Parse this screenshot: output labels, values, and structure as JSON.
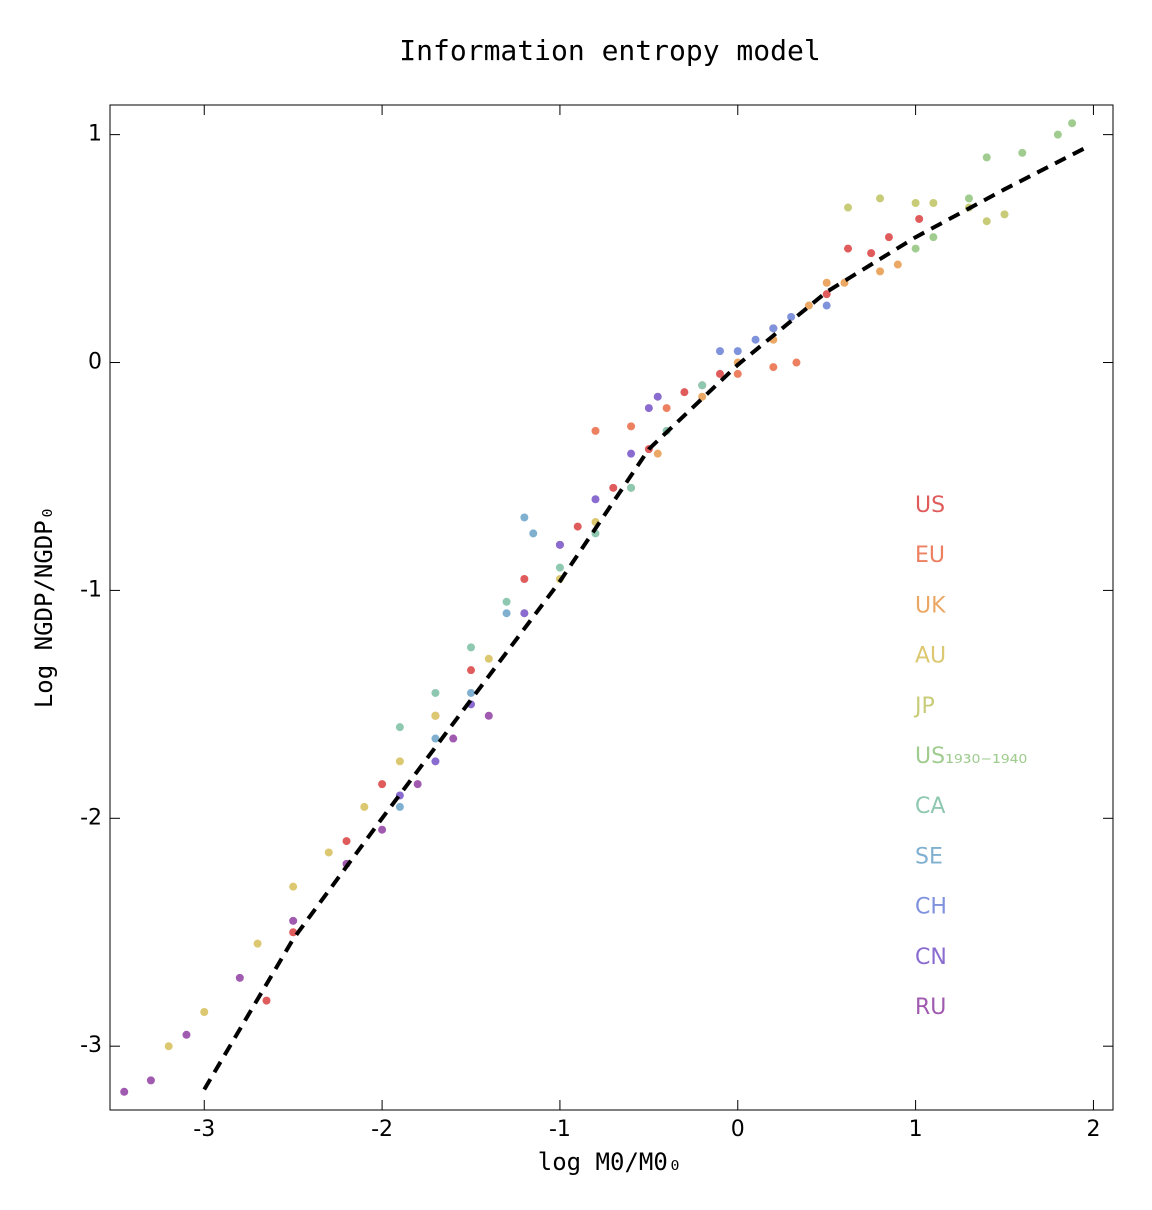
{
  "chart_data": {
    "type": "scatter",
    "title": "Information entropy model",
    "x_label": "log M0/M0₀",
    "y_label": "Log NGDP/NGDP₀",
    "xlim": [
      -3.53,
      2.11
    ],
    "ylim": [
      -3.28,
      1.13
    ],
    "xticks": [
      -3,
      -2,
      -1,
      0,
      1,
      2
    ],
    "yticks": [
      -3,
      -2,
      -1,
      0,
      1
    ],
    "model_line": {
      "color": "#000000",
      "x": [
        -3,
        -2.5,
        -2,
        -1.5,
        -1,
        -0.5,
        0,
        0.5,
        1,
        1.5,
        1.95
      ],
      "values": [
        -3.19,
        -2.53,
        -2.0,
        -1.48,
        -0.96,
        -0.38,
        -0.01,
        0.31,
        0.55,
        0.76,
        0.94
      ]
    },
    "series": [
      {
        "name": "US",
        "color": "#e05c5c",
        "x": [
          -2.65,
          -2.5,
          -2.2,
          -2,
          -1.7,
          -1.5,
          -1.2,
          -1,
          -0.9,
          -0.7,
          -0.5,
          -0.3,
          -0.1,
          0.2,
          0.5,
          0.62,
          0.75,
          0.85,
          1.02
        ],
        "values": [
          -2.8,
          -2.5,
          -2.1,
          -1.85,
          -1.55,
          -1.35,
          -0.95,
          -0.8,
          -0.72,
          -0.55,
          -0.38,
          -0.13,
          -0.05,
          0.15,
          0.3,
          0.5,
          0.48,
          0.55,
          0.63
        ]
      },
      {
        "name": "EU",
        "color": "#ec8060",
        "x": [
          -0.8,
          -0.6,
          -0.4,
          -0.2,
          0,
          0.2,
          0.33
        ],
        "values": [
          -0.3,
          -0.28,
          -0.2,
          -0.1,
          -0.05,
          -0.02,
          0
        ]
      },
      {
        "name": "UK",
        "color": "#eba865",
        "x": [
          -0.45,
          -0.2,
          0,
          0.2,
          0.4,
          0.5,
          0.6,
          0.8,
          0.9
        ],
        "values": [
          -0.4,
          -0.15,
          0,
          0.1,
          0.25,
          0.35,
          0.35,
          0.4,
          0.43
        ]
      },
      {
        "name": "AU",
        "color": "#dcc870",
        "x": [
          -3.2,
          -3,
          -2.7,
          -2.5,
          -2.3,
          -2.1,
          -1.9,
          -1.7,
          -1.4,
          -1.2,
          -1,
          -0.8,
          -0.6
        ],
        "values": [
          -3.0,
          -2.85,
          -2.55,
          -2.3,
          -2.15,
          -1.95,
          -1.75,
          -1.55,
          -1.3,
          -1.1,
          -0.95,
          -0.7,
          -0.55
        ]
      },
      {
        "name": "JP",
        "color": "#c8cc78",
        "x": [
          0.62,
          0.8,
          1,
          1.1,
          1.3,
          1.4,
          1.5
        ],
        "values": [
          0.68,
          0.72,
          0.7,
          0.7,
          0.68,
          0.62,
          0.65
        ]
      },
      {
        "name": "US₁₉₃₀₋₁₉₄₀",
        "color": "#a0cc90",
        "x": [
          1.0,
          1.1,
          1.3,
          1.4,
          1.6,
          1.8,
          1.88
        ],
        "values": [
          0.5,
          0.55,
          0.72,
          0.9,
          0.92,
          1.0,
          1.05
        ]
      },
      {
        "name": "CA",
        "color": "#8ec8b0",
        "x": [
          -1.9,
          -1.7,
          -1.5,
          -1.3,
          -1.0,
          -0.8,
          -0.6,
          -0.4,
          -0.2
        ],
        "values": [
          -1.6,
          -1.45,
          -1.25,
          -1.05,
          -0.9,
          -0.75,
          -0.55,
          -0.3,
          -0.1
        ]
      },
      {
        "name": "SE",
        "color": "#80b0d0",
        "x": [
          -1.9,
          -1.7,
          -1.5,
          -1.3,
          -1.15,
          -1.2
        ],
        "values": [
          -1.95,
          -1.65,
          -1.45,
          -1.1,
          -0.75,
          -0.68
        ]
      },
      {
        "name": "CH",
        "color": "#7f92dc",
        "x": [
          -0.1,
          0,
          0.1,
          0.2,
          0.3,
          0.5
        ],
        "values": [
          0.05,
          0.05,
          0.1,
          0.15,
          0.2,
          0.25
        ]
      },
      {
        "name": "CN",
        "color": "#8a6cd0",
        "x": [
          -1.9,
          -1.7,
          -1.5,
          -1.2,
          -1,
          -0.8,
          -0.6,
          -0.5,
          -0.45
        ],
        "values": [
          -1.9,
          -1.75,
          -1.5,
          -1.1,
          -0.8,
          -0.6,
          -0.4,
          -0.2,
          -0.15
        ]
      },
      {
        "name": "RU",
        "color": "#a05ab0",
        "x": [
          -3.45,
          -3.3,
          -3.1,
          -2.8,
          -2.5,
          -2.2,
          -2,
          -1.8,
          -1.6,
          -1.4
        ],
        "values": [
          -3.2,
          -3.15,
          -2.95,
          -2.7,
          -2.45,
          -2.2,
          -2.05,
          -1.85,
          -1.65,
          -1.55
        ]
      }
    ]
  }
}
